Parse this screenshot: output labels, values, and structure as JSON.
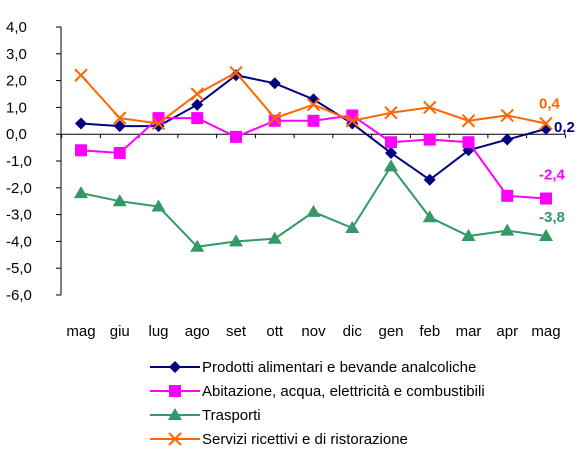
{
  "chart_data": {
    "type": "line",
    "categories": [
      "mag",
      "giu",
      "lug",
      "ago",
      "set",
      "ott",
      "nov",
      "dic",
      "gen",
      "feb",
      "mar",
      "apr",
      "mag"
    ],
    "ylim": [
      -6.0,
      4.0
    ],
    "yticks": [
      "4,0",
      "3,0",
      "2,0",
      "1,0",
      "0,0",
      "-1,0",
      "-2,0",
      "-3,0",
      "-4,0",
      "-5,0",
      "-6,0"
    ],
    "ytick_values": [
      4,
      3,
      2,
      1,
      0,
      -1,
      -2,
      -3,
      -4,
      -5,
      -6
    ],
    "grid": false,
    "legend_position": "bottom",
    "series": [
      {
        "name": "Prodotti alimentari e bevande analcoliche",
        "color": "#000080",
        "marker": "diamond",
        "values": [
          0.4,
          0.3,
          0.3,
          1.1,
          2.2,
          1.9,
          1.3,
          0.4,
          -0.7,
          -1.7,
          -0.6,
          -0.2,
          0.2
        ],
        "end_label": "0,2"
      },
      {
        "name": "Abitazione, acqua, elettricità e combustibili",
        "color": "#ff00ff",
        "marker": "square",
        "values": [
          -0.6,
          -0.7,
          0.6,
          0.6,
          -0.1,
          0.5,
          0.5,
          0.7,
          -0.3,
          -0.2,
          -0.3,
          -2.3,
          -2.4
        ],
        "end_label": "-2,4"
      },
      {
        "name": "Trasporti",
        "color": "#339966",
        "marker": "triangle",
        "values": [
          -2.2,
          -2.5,
          -2.7,
          -4.2,
          -4.0,
          -3.9,
          -2.9,
          -3.5,
          -1.2,
          -3.1,
          -3.8,
          -3.6,
          -3.8
        ],
        "end_label": "-3,8"
      },
      {
        "name": "Servizi ricettivi e di ristorazione",
        "color": "#ff6600",
        "marker": "x",
        "values": [
          2.2,
          0.6,
          0.4,
          1.5,
          2.3,
          0.6,
          1.1,
          0.5,
          0.8,
          1.0,
          0.5,
          0.7,
          0.4
        ],
        "end_label": "0,4"
      }
    ]
  }
}
